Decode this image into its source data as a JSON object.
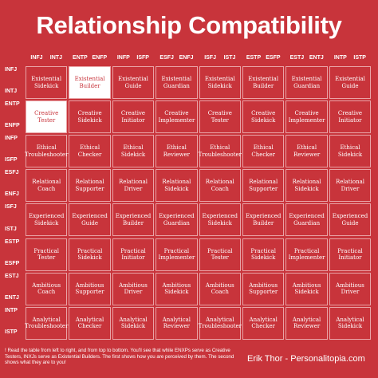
{
  "title": "Relationship Compatibility",
  "column_headers": [
    "INFJ",
    "INTJ",
    "ENTP",
    "ENFP",
    "INFP",
    "ISFP",
    "ESFJ",
    "ENFJ",
    "ISFJ",
    "ISTJ",
    "ESTP",
    "ESFP",
    "ESTJ",
    "ENTJ",
    "INTP",
    "ISTP"
  ],
  "row_headers": [
    "INFJ",
    "INTJ",
    "ENTP",
    "ENFP",
    "INFP",
    "ISFP",
    "ESFJ",
    "ENFJ",
    "ISFJ",
    "ISTJ",
    "ESTP",
    "ESFP",
    "ESTJ",
    "ENTJ",
    "INTP",
    "ISTP"
  ],
  "table": {
    "rows": [
      [
        "Existential Sidekick",
        "Existential Builder",
        "Existential Guide",
        "Existential Guardian",
        "Existential Sidekick",
        "Existential Builder",
        "Existential Guardian",
        "Existential Guide"
      ],
      [
        "Creative Tester",
        "Creative Sidekick",
        "Creative Initiator",
        "Creative Implementer",
        "Creative Tester",
        "Creative Sidekick",
        "Creative Implementer",
        "Creative Initiator"
      ],
      [
        "Ethical Troubleshooter",
        "Ethical Checker",
        "Ethical Sidekick",
        "Ethical Reviewer",
        "Ethical Troubleshooter",
        "Ethical Checker",
        "Ethical Reviewer",
        "Ethical Sidekick"
      ],
      [
        "Relational Coach",
        "Relational Supporter",
        "Relational Driver",
        "Relational Sidekick",
        "Relational Coach",
        "Relational Supporter",
        "Relational Sidekick",
        "Relational Driver"
      ],
      [
        "Experienced Sidekick",
        "Experienced Guide",
        "Experienced Builder",
        "Experienced Guardian",
        "Experienced Sidekick",
        "Experienced Builder",
        "Experienced Guardian",
        "Experienced Guide"
      ],
      [
        "Practical Tester",
        "Practical Sidekick",
        "Practical Initiator",
        "Practical Implementer",
        "Practical Tester",
        "Practical Sidekick",
        "Practical Implementer",
        "Practical Initiator"
      ],
      [
        "Ambitious Coach",
        "Ambitious Supporter",
        "Ambitious Driver",
        "Ambitious Sidekick",
        "Ambitious Coach",
        "Ambitious Supporter",
        "Ambitious Sidekick",
        "Ambitious Driver"
      ],
      [
        "Analytical Troubleshooter",
        "Analytical Checker",
        "Analytical Sidekick",
        "Analytical Reviewer",
        "Analytical Troubleshooter",
        "Analytical Checker",
        "Analytical Reviewer",
        "Analytical Sidekick"
      ]
    ]
  },
  "footer": {
    "note": "! Read the table from left to right, and from top to bottom. You'll see that while ENXPs serve as Creative Testers, INXJs serve as Existential Builders. The first shows how you are perceived by them. The second shows what they are to you!",
    "credit": "Erik Thor - Personalitopia.com"
  }
}
